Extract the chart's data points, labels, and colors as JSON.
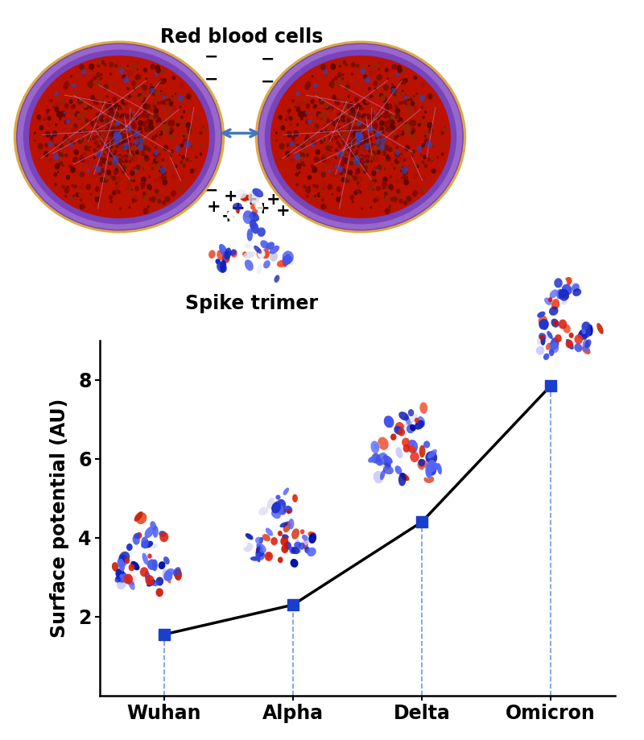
{
  "categories": [
    "Wuhan",
    "Alpha",
    "Delta",
    "Omicron"
  ],
  "x_positions": [
    1,
    2,
    3,
    4
  ],
  "y_values": [
    1.55,
    2.3,
    4.4,
    7.85
  ],
  "ylabel": "Surface potential (AU)",
  "ylim": [
    0,
    9
  ],
  "yticks": [
    2,
    4,
    6,
    8
  ],
  "line_color": "#000000",
  "marker_color": "#1a3fcc",
  "marker_size": 110,
  "dashed_line_color": "#5588dd",
  "title_rbc": "Red blood cells",
  "label_spike": "Spike trimer",
  "arrow_color": "#4477bb",
  "background_color": "#ffffff",
  "axis_label_fontsize": 17,
  "tick_fontsize": 17,
  "cat_fontsize": 17,
  "annotation_fontsize": 17,
  "fig_width": 8.0,
  "fig_height": 9.19
}
